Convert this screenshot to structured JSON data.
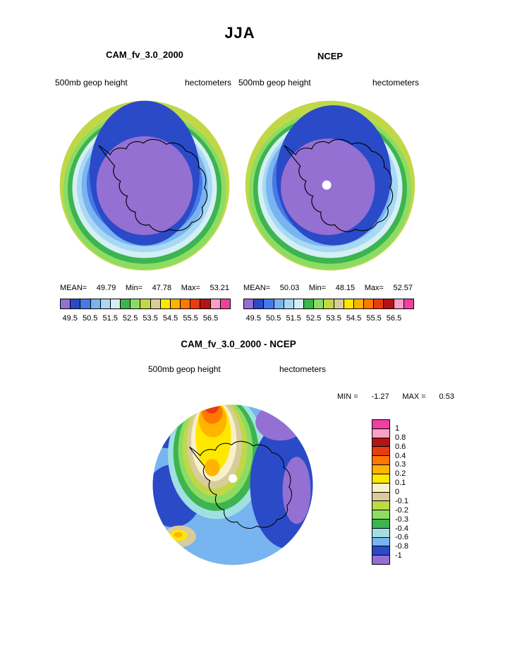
{
  "page_title": "JJA",
  "panels": {
    "cam": {
      "title": "CAM_fv_3.0_2000",
      "field_label": "500mb geop height",
      "units_label": "hectometers",
      "stats": {
        "mean_label": "MEAN=",
        "mean": "49.79",
        "min_label": "Min=",
        "min": "47.78",
        "max_label": "Max=",
        "max": "53.21"
      }
    },
    "ncep": {
      "title": "NCEP",
      "field_label": "500mb geop height",
      "units_label": "hectometers",
      "stats": {
        "mean_label": "MEAN=",
        "mean": "50.03",
        "min_label": "Min=",
        "min": "48.15",
        "max_label": "Max=",
        "max": "52.57"
      }
    },
    "diff": {
      "title": "CAM_fv_3.0_2000 - NCEP",
      "field_label": "500mb geop height",
      "units_label": "hectometers",
      "stats": {
        "min_label": "MIN =",
        "min": "-1.27",
        "max_label": "MAX =",
        "max": "0.53"
      }
    }
  },
  "colorbar_height": {
    "orientation": "horizontal",
    "colors": [
      "#9470D2",
      "#2A4AC8",
      "#4678E8",
      "#78B4F0",
      "#A8D8F4",
      "#D4F0F4",
      "#3CB450",
      "#8CDC64",
      "#C0D848",
      "#D8CC9C",
      "#FFE800",
      "#FFB400",
      "#FF7800",
      "#E83C10",
      "#B41414",
      "#F8A0C8",
      "#F040A0"
    ],
    "tick_labels": [
      "49.5",
      "50.5",
      "51.5",
      "52.5",
      "53.5",
      "54.5",
      "55.5",
      "56.5"
    ]
  },
  "colorbar_diff": {
    "orientation": "vertical",
    "colors": [
      "#F040A0",
      "#F8A0C8",
      "#B41414",
      "#E83C10",
      "#FF7800",
      "#FFB400",
      "#FFE800",
      "#F8F0C8",
      "#D8CC9C",
      "#C0D848",
      "#8CDC64",
      "#3CB450",
      "#A0E0E0",
      "#78B4F0",
      "#2A4AC8",
      "#9470D2"
    ],
    "tick_labels": [
      "1",
      "0.8",
      "0.6",
      "0.4",
      "0.3",
      "0.2",
      "0.1",
      "0",
      "-0.1",
      "-0.2",
      "-0.3",
      "-0.4",
      "-0.6",
      "-0.8",
      "-1"
    ]
  },
  "chart_data": [
    {
      "type": "heatmap",
      "title": "CAM_fv_3.0_2000",
      "subtitle": "JJA 500mb geop height, south polar stereographic filled-contour map",
      "ylabel": "",
      "xlabel": "",
      "units": "hectometers",
      "stats": {
        "mean": 49.79,
        "min": 47.78,
        "max": 53.21
      },
      "contour_levels": [
        49.5,
        50,
        50.5,
        51,
        51.5,
        52,
        52.5,
        53,
        53.5,
        54,
        54.5,
        55,
        55.5,
        56,
        56.5
      ],
      "legend_position": "bottom",
      "grid": false
    },
    {
      "type": "heatmap",
      "title": "NCEP",
      "subtitle": "JJA 500mb geop height, south polar stereographic filled-contour map",
      "ylabel": "",
      "xlabel": "",
      "units": "hectometers",
      "stats": {
        "mean": 50.03,
        "min": 48.15,
        "max": 52.57
      },
      "contour_levels": [
        49.5,
        50,
        50.5,
        51,
        51.5,
        52,
        52.5,
        53,
        53.5,
        54,
        54.5,
        55,
        55.5,
        56,
        56.5
      ],
      "legend_position": "bottom",
      "grid": false
    },
    {
      "type": "heatmap",
      "title": "CAM_fv_3.0_2000 - NCEP",
      "subtitle": "JJA 500mb geop height difference, south polar stereographic filled-contour map",
      "ylabel": "",
      "xlabel": "",
      "units": "hectometers",
      "stats": {
        "min": -1.27,
        "max": 0.53
      },
      "contour_levels": [
        -1,
        -0.8,
        -0.6,
        -0.4,
        -0.3,
        -0.2,
        -0.1,
        0,
        0.1,
        0.2,
        0.3,
        0.4,
        0.6,
        0.8,
        1
      ],
      "legend_position": "right",
      "grid": false
    }
  ]
}
